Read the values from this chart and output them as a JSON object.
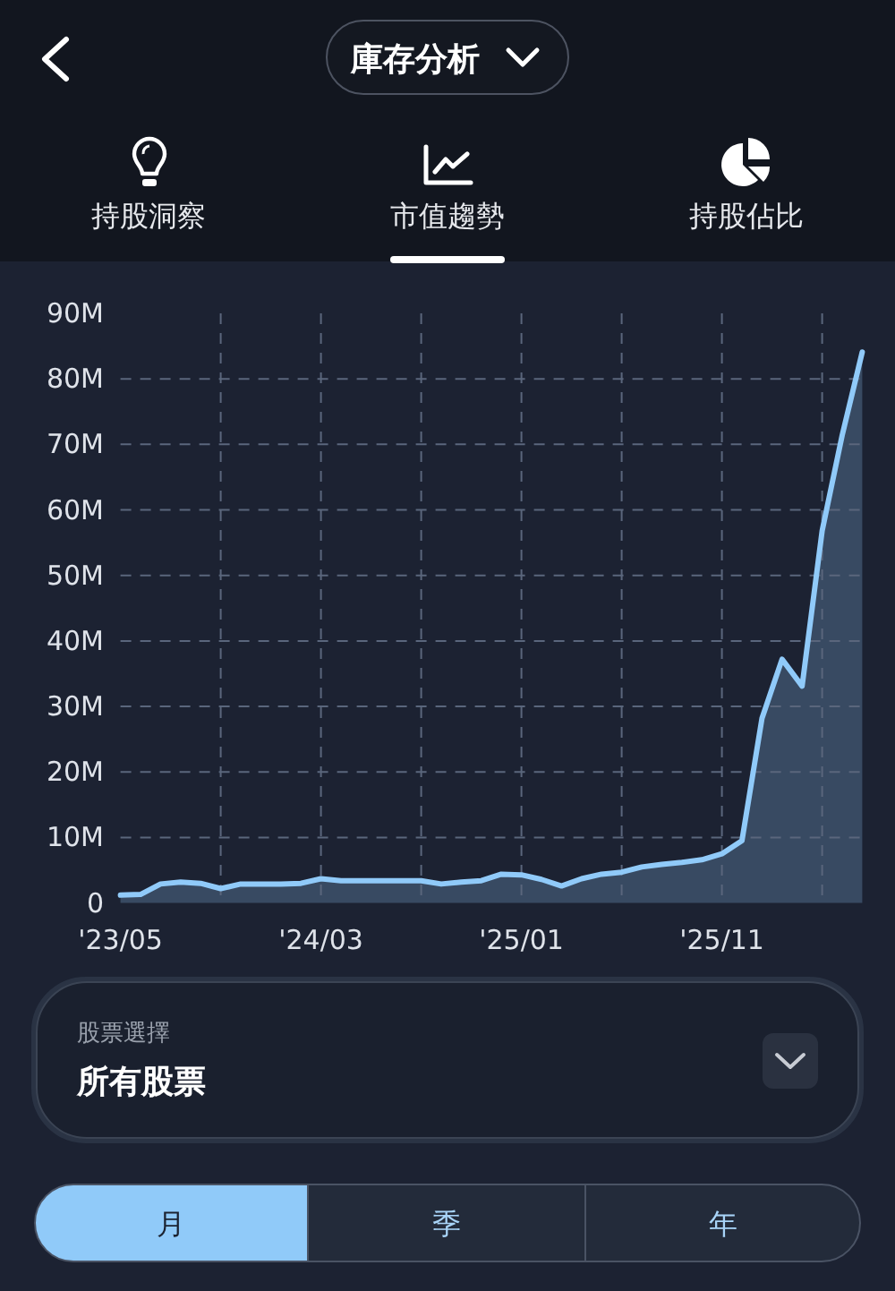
{
  "chart_data": {
    "type": "area",
    "title": "庫存分析",
    "annotations": [
      "持股洞察",
      "市值趨勢",
      "持股佔比",
      "股票選擇",
      "所有股票",
      "月",
      "季",
      "年"
    ],
    "x": [
      "2023-05",
      "2023-06",
      "2023-07",
      "2023-08",
      "2023-09",
      "2023-10",
      "2023-11",
      "2023-12",
      "2024-01",
      "2024-02",
      "2024-03",
      "2024-04",
      "2024-05",
      "2024-06",
      "2024-07",
      "2024-08",
      "2024-09",
      "2024-10",
      "2024-11",
      "2024-12",
      "2025-01",
      "2025-02",
      "2025-03",
      "2025-04",
      "2025-05",
      "2025-06",
      "2025-07",
      "2025-08",
      "2025-09",
      "2025-10",
      "2025-11",
      "2025-12",
      "2026-01",
      "2026-02",
      "2026-03",
      "2026-04",
      "2026-05",
      "2026-06"
    ],
    "values": [
      1.2,
      1.3,
      2.9,
      3.2,
      3.0,
      2.2,
      2.9,
      2.9,
      2.9,
      3.0,
      3.7,
      3.4,
      3.4,
      3.4,
      3.4,
      3.4,
      2.9,
      3.2,
      3.4,
      4.4,
      4.3,
      3.6,
      2.6,
      3.7,
      4.4,
      4.7,
      5.5,
      5.9,
      6.2,
      6.6,
      7.5,
      9.5,
      28.2,
      37.2,
      33.1,
      56.8,
      71.4,
      84.1
    ],
    "color": "#90caf9",
    "xlim": [
      "2023-05",
      "2026-06"
    ],
    "xticks": [
      {
        "value": "2023-05",
        "label": "'23/05"
      },
      {
        "value": "2023-10",
        "label": null
      },
      {
        "value": "2024-03",
        "label": "'24/03"
      },
      {
        "value": "2024-08",
        "label": null
      },
      {
        "value": "2025-01",
        "label": "'25/01"
      },
      {
        "value": "2025-06",
        "label": null
      },
      {
        "value": "2025-11",
        "label": "'25/11"
      },
      {
        "value": "2026-04",
        "label": null
      }
    ],
    "ylim": [
      0,
      90
    ],
    "yticks": [
      0,
      {
        "value": 10,
        "label": "10M"
      },
      {
        "value": 20,
        "label": "20M"
      },
      {
        "value": 30,
        "label": "30M"
      },
      {
        "value": 40,
        "label": "40M"
      },
      {
        "value": 50,
        "label": "50M"
      },
      {
        "value": 60,
        "label": "60M"
      },
      {
        "value": 70,
        "label": "70M"
      },
      {
        "value": 80,
        "label": "80M"
      },
      {
        "value": 90,
        "label": "90M"
      }
    ],
    "grid": true
  }
}
